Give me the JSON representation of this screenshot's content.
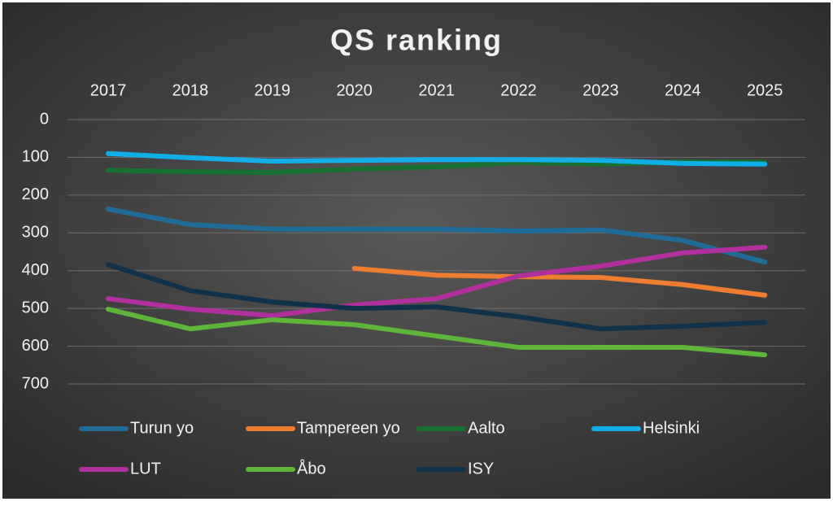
{
  "chart_data": {
    "type": "line",
    "title": "QS ranking",
    "categories": [
      "2017",
      "2018",
      "2019",
      "2020",
      "2021",
      "2022",
      "2023",
      "2024",
      "2025"
    ],
    "series": [
      {
        "name": "Turun yo",
        "color": "#1f6c98",
        "values": [
          237,
          278,
          290,
          290,
          290,
          295,
          292,
          320,
          377
        ]
      },
      {
        "name": "Tampereen yo",
        "color": "#ed7d31",
        "values": [
          null,
          null,
          null,
          394,
          412,
          416,
          418,
          437,
          465
        ]
      },
      {
        "name": "Aalto",
        "color": "#17702f",
        "values": [
          134,
          138,
          140,
          131,
          125,
          114,
          118,
          112,
          113
        ]
      },
      {
        "name": "Helsinki",
        "color": "#12aee8",
        "values": [
          90,
          101,
          110,
          108,
          106,
          106,
          108,
          116,
          118
        ]
      },
      {
        "name": "LUT",
        "color": "#b0309e",
        "values": [
          474,
          502,
          519,
          491,
          474,
          414,
          388,
          353,
          338
        ]
      },
      {
        "name": "Åbo",
        "color": "#5db53a",
        "values": [
          502,
          554,
          530,
          543,
          573,
          603,
          603,
          603,
          623
        ]
      },
      {
        "name": "ISY",
        "color": "#10324a",
        "values": [
          384,
          453,
          483,
          500,
          496,
          522,
          554,
          547,
          537
        ]
      }
    ],
    "ylim": [
      0,
      700
    ],
    "y_reversed": true,
    "yticks": [
      0,
      100,
      200,
      300,
      400,
      500,
      600,
      700
    ],
    "grid": true,
    "legend": "bottom"
  }
}
